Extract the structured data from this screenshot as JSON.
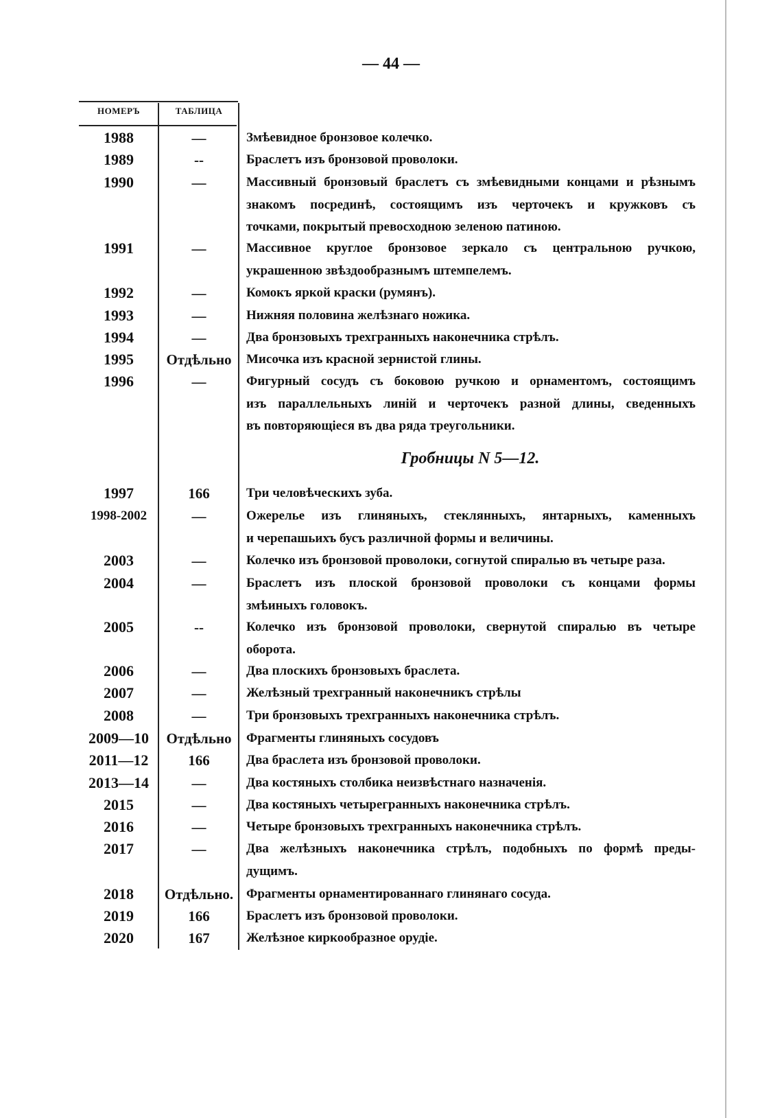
{
  "page_number": "— 44 —",
  "header": {
    "number": "НОМЕРЪ",
    "table": "ТАБЛИЦА"
  },
  "section_heading": "Гробницы N 5—12.",
  "rows_before": [
    {
      "num": "1988",
      "table": "—",
      "lines": [
        "Змѣевидное бронзовое колечко."
      ]
    },
    {
      "num": "1989",
      "table": "--",
      "lines": [
        "Браслетъ изъ бронзовой проволоки."
      ]
    },
    {
      "num": "1990",
      "table": "—",
      "lines": [
        "Массивный бронзовый браслетъ съ змѣевидными концами и рѣзнымъ",
        "знакомъ посрединѣ, состоящимъ изъ черточекъ и кружковъ съ",
        "точками, покрытый превосходною зеленою патиною."
      ]
    },
    {
      "num": "1991",
      "table": "—",
      "lines": [
        "Массивное круглое бронзовое зеркало съ центральною ручкою,",
        "украшенною звѣздообразнымъ штемпелемъ."
      ]
    },
    {
      "num": "1992",
      "table": "—",
      "lines": [
        "Комокъ яркой краски (румянъ)."
      ]
    },
    {
      "num": "1993",
      "table": "—",
      "lines": [
        "Нижняя половина желѣзнаго ножика."
      ]
    },
    {
      "num": "1994",
      "table": "—",
      "lines": [
        "Два бронзовыхъ трехгранныхъ наконечника стрѣлъ."
      ]
    },
    {
      "num": "1995",
      "table": "Отдѣльно",
      "lines": [
        "Мисочка изъ красной зернистой глины."
      ]
    },
    {
      "num": "1996",
      "table": "—",
      "lines": [
        "Фигурный сосудъ съ боковою ручкою и орнаментомъ, состоящимъ",
        "изъ параллельныхъ линій и черточекъ разной длины, сведенныхъ",
        "въ повторяющіеся въ два ряда треугольники."
      ]
    }
  ],
  "rows_after": [
    {
      "num": "1997",
      "table": "166",
      "lines": [
        "Три человѣческихъ зуба."
      ]
    },
    {
      "num": "1998-2002",
      "table": "—",
      "lines": [
        "Ожерелье изъ глиняныхъ, стеклянныхъ, янтарныхъ, каменныхъ",
        "и черепашьихъ бусъ различной формы и величины."
      ]
    },
    {
      "num": "2003",
      "table": "—",
      "lines": [
        "Колечко изъ бронзовой проволоки, согнутой спиралью въ четыре раза."
      ]
    },
    {
      "num": "2004",
      "table": "—",
      "lines": [
        "Браслетъ изъ плоской бронзовой проволоки съ концами формы",
        "змѣиныхъ головокъ."
      ]
    },
    {
      "num": "2005",
      "table": "--",
      "lines": [
        "Колечко изъ бронзовой проволоки, свернутой спиралью въ четыре",
        "оборота."
      ]
    },
    {
      "num": "2006",
      "table": "—",
      "lines": [
        "Два плоскихъ бронзовыхъ браслета."
      ]
    },
    {
      "num": "2007",
      "table": "—",
      "lines": [
        "Желѣзный трехгранный наконечникъ стрѣлы"
      ]
    },
    {
      "num": "2008",
      "table": "—",
      "lines": [
        "Три бронзовыхъ трехгранныхъ наконечника стрѣлъ."
      ]
    },
    {
      "num": "2009—10",
      "table": "Отдѣльно",
      "lines": [
        "Фрагменты глиняныхъ сосудовъ"
      ]
    },
    {
      "num": "2011—12",
      "table": "166",
      "lines": [
        "Два браслета изъ бронзовой проволоки."
      ]
    },
    {
      "num": "2013—14",
      "table": "—",
      "lines": [
        "Два костяныхъ столбика неизвѣстнаго назначенія."
      ]
    },
    {
      "num": "2015",
      "table": "—",
      "lines": [
        "Два костяныхъ четырегранныхъ наконечника стрѣлъ."
      ]
    },
    {
      "num": "2016",
      "table": "—",
      "lines": [
        "Четыре бронзовыхъ трехгранныхъ наконечника стрѣлъ."
      ]
    },
    {
      "num": "2017",
      "table": "—",
      "lines": [
        "Два желѣзныхъ наконечника стрѣлъ, подобныхъ по формѣ преды-",
        "дущимъ."
      ]
    },
    {
      "num": "2018",
      "table": "Отдѣльно.",
      "lines": [
        "Фрагменты орнаментированнаго глинянаго сосуда."
      ]
    },
    {
      "num": "2019",
      "table": "166",
      "lines": [
        "Браслетъ изъ бронзовой проволоки."
      ]
    },
    {
      "num": "2020",
      "table": "167",
      "lines": [
        "Желѣзное киркообразное орудіе."
      ]
    }
  ]
}
